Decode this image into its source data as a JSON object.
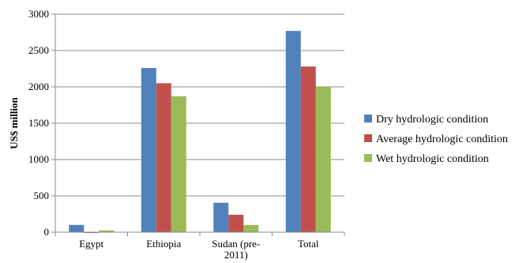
{
  "chart_data": {
    "type": "bar",
    "title": "",
    "xlabel": "",
    "ylabel": "US$ million",
    "ylim": [
      0,
      3000
    ],
    "yticks": [
      "0",
      "500",
      "1000",
      "1500",
      "2000",
      "2500",
      "3000"
    ],
    "categories": [
      "Egypt",
      "Ethiopia",
      "Sudan (pre-2011)",
      "Total"
    ],
    "category_lines": [
      [
        "Egypt"
      ],
      [
        "Ethiopia"
      ],
      [
        "Sudan (pre-",
        "2011)"
      ],
      [
        "Total"
      ]
    ],
    "grid": true,
    "legend_position": "right",
    "series": [
      {
        "name": "Dry hydrologic condition",
        "color": "#4f81bd",
        "values": [
          100,
          2260,
          405,
          2770
        ]
      },
      {
        "name": "Average hydrologic condition",
        "color": "#c0504d",
        "values": [
          -10,
          2050,
          240,
          2280
        ]
      },
      {
        "name": "Wet hydrologic condition",
        "color": "#9bbb59",
        "values": [
          25,
          1870,
          100,
          2000
        ]
      }
    ]
  }
}
